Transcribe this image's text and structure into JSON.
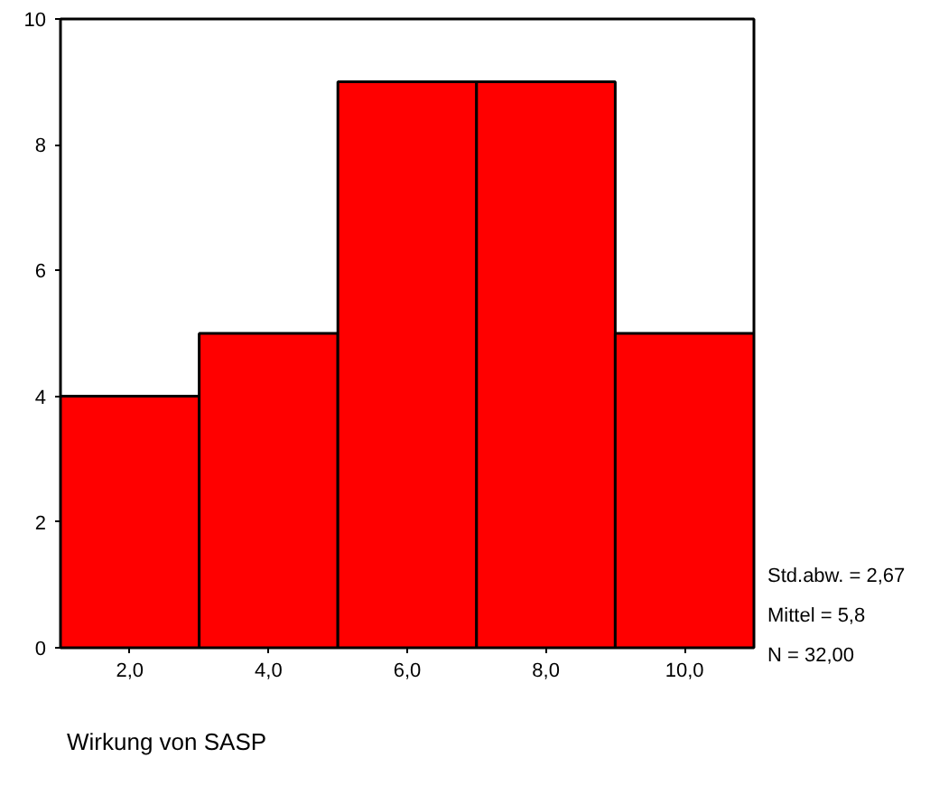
{
  "chart_data": {
    "type": "histogram",
    "xlabel": "Wirkung von SASP",
    "bins": [
      1,
      3,
      5,
      7,
      9,
      11
    ],
    "values": [
      4,
      5,
      9,
      9,
      5
    ],
    "color": "#ff0000",
    "xlim": [
      1,
      11
    ],
    "xticks": [
      {
        "value": 2,
        "label": "2,0"
      },
      {
        "value": 4,
        "label": "4,0"
      },
      {
        "value": 6,
        "label": "6,0"
      },
      {
        "value": 8,
        "label": "8,0"
      },
      {
        "value": 10,
        "label": "10,0"
      }
    ],
    "ylim": [
      0,
      10
    ],
    "yticks": [
      0,
      2,
      4,
      6,
      8,
      10
    ],
    "grid": false,
    "annotations": [
      "Std.abw. = 2,67",
      "Mittel = 5,8",
      "N = 32,00"
    ]
  }
}
